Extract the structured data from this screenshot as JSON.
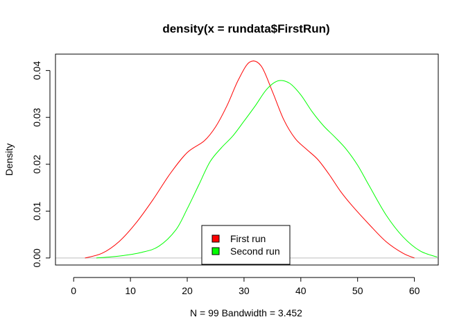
{
  "chart_data": {
    "type": "line",
    "title": "density(x = rundata$FirstRun)",
    "xlabel": "N = 99   Bandwidth = 3.452",
    "ylabel": "Density",
    "xlim": [
      -3.2,
      64.2
    ],
    "ylim": [
      -0.0015,
      0.0435
    ],
    "x_ticks": [
      "0",
      "10",
      "20",
      "30",
      "40",
      "50",
      "60"
    ],
    "y_ticks": [
      "0.00",
      "0.01",
      "0.02",
      "0.03",
      "0.04"
    ],
    "grid": false,
    "zero_line": true,
    "legend_position": "bottom-center",
    "series": [
      {
        "name": "First run",
        "color": "#ff0000",
        "x": [
          2,
          5,
          8,
          11,
          14,
          17,
          20,
          23,
          25,
          27,
          29,
          31,
          33,
          35,
          37,
          39,
          41,
          43,
          45,
          47,
          49,
          52,
          55,
          58,
          60
        ],
        "y": [
          0.0,
          0.001,
          0.0035,
          0.0075,
          0.0125,
          0.018,
          0.0225,
          0.025,
          0.028,
          0.0325,
          0.038,
          0.0418,
          0.041,
          0.0355,
          0.0295,
          0.0255,
          0.0232,
          0.021,
          0.0178,
          0.0142,
          0.0112,
          0.0072,
          0.0035,
          0.001,
          0.0
        ]
      },
      {
        "name": "Second run",
        "color": "#00ff00",
        "x": [
          4,
          8,
          12,
          15,
          18,
          20,
          22,
          24,
          26,
          28,
          30,
          32,
          34,
          36,
          38,
          40,
          42,
          44,
          46,
          48,
          50,
          52,
          55,
          58,
          61,
          64
        ],
        "y": [
          0.0,
          0.0004,
          0.0012,
          0.0025,
          0.006,
          0.0105,
          0.0155,
          0.0205,
          0.0235,
          0.026,
          0.0292,
          0.0325,
          0.036,
          0.0378,
          0.0373,
          0.0348,
          0.0312,
          0.0282,
          0.0258,
          0.0232,
          0.0198,
          0.0155,
          0.0092,
          0.0045,
          0.0015,
          0.0002
        ]
      }
    ]
  }
}
